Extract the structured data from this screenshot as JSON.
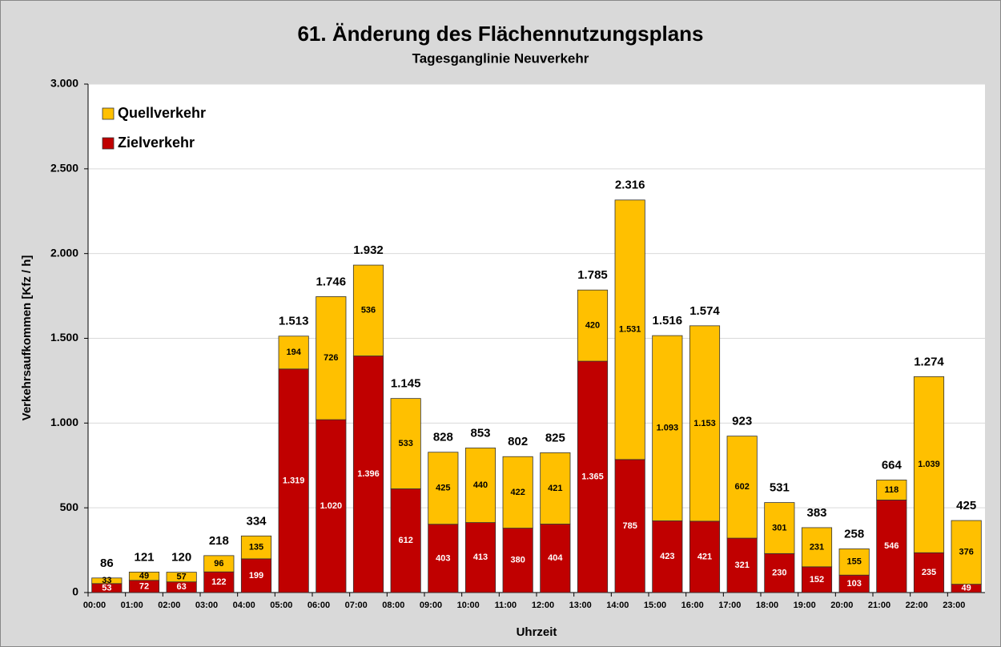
{
  "chart_data": {
    "type": "stacked_bar",
    "title": "61. Änderung des Flächennutzungsplans",
    "subtitle": "Tagesganglinie Neuverkehr",
    "y_label": "Verkehrsaufkommen [Kfz / h]",
    "x_label": "Uhrzeit",
    "legend": "top-left",
    "grid": true,
    "categories": [
      "00:00",
      "01:00",
      "02:00",
      "03:00",
      "04:00",
      "05:00",
      "06:00",
      "07:00",
      "08:00",
      "09:00",
      "10:00",
      "11:00",
      "12:00",
      "13:00",
      "14:00",
      "15:00",
      "16:00",
      "17:00",
      "18:00",
      "19:00",
      "20:00",
      "21:00",
      "22:00",
      "23:00"
    ],
    "series": [
      {
        "name": "Zielverkehr",
        "color": "#c00000",
        "label_color": "#ffffff",
        "values": [
          53,
          72,
          63,
          122,
          199,
          1319,
          1020,
          1396,
          612,
          403,
          413,
          380,
          404,
          1365,
          785,
          423,
          421,
          321,
          230,
          152,
          103,
          546,
          235,
          49
        ],
        "value_labels": [
          "53",
          "72",
          "63",
          "122",
          "199",
          "1.319",
          "1.020",
          "1.396",
          "612",
          "403",
          "413",
          "380",
          "404",
          "1.365",
          "785",
          "423",
          "421",
          "321",
          "230",
          "152",
          "103",
          "546",
          "235",
          "49"
        ]
      },
      {
        "name": "Quellverkehr",
        "color": "#ffc000",
        "label_color": "#000000",
        "values": [
          33,
          49,
          57,
          96,
          135,
          194,
          726,
          536,
          533,
          425,
          440,
          422,
          421,
          420,
          1531,
          1093,
          1153,
          602,
          301,
          231,
          155,
          118,
          1039,
          376
        ],
        "value_labels": [
          "33",
          "49",
          "57",
          "96",
          "135",
          "194",
          "726",
          "536",
          "533",
          "425",
          "440",
          "422",
          "421",
          "420",
          "1.531",
          "1.093",
          "1.153",
          "602",
          "301",
          "231",
          "155",
          "118",
          "1.039",
          "376"
        ]
      }
    ],
    "totals": {
      "values": [
        86,
        121,
        120,
        218,
        334,
        1513,
        1746,
        1932,
        1145,
        828,
        853,
        802,
        825,
        1785,
        2316,
        1516,
        1574,
        923,
        531,
        383,
        258,
        664,
        1274,
        425
      ],
      "value_labels": [
        "86",
        "121",
        "120",
        "218",
        "334",
        "1.513",
        "1.746",
        "1.932",
        "1.145",
        "828",
        "853",
        "802",
        "825",
        "1.785",
        "2.316",
        "1.516",
        "1.574",
        "923",
        "531",
        "383",
        "258",
        "664",
        "1.274",
        "425"
      ]
    },
    "ylim": [
      0,
      3000
    ],
    "yticks": [
      0,
      500,
      {
        "value": 1000,
        "label": "1.000"
      },
      {
        "value": 1500,
        "label": "1.500"
      },
      {
        "value": 2000,
        "label": "2.000"
      },
      {
        "value": 2500,
        "label": "2.500"
      },
      {
        "value": 3000,
        "label": "3.000"
      }
    ]
  }
}
